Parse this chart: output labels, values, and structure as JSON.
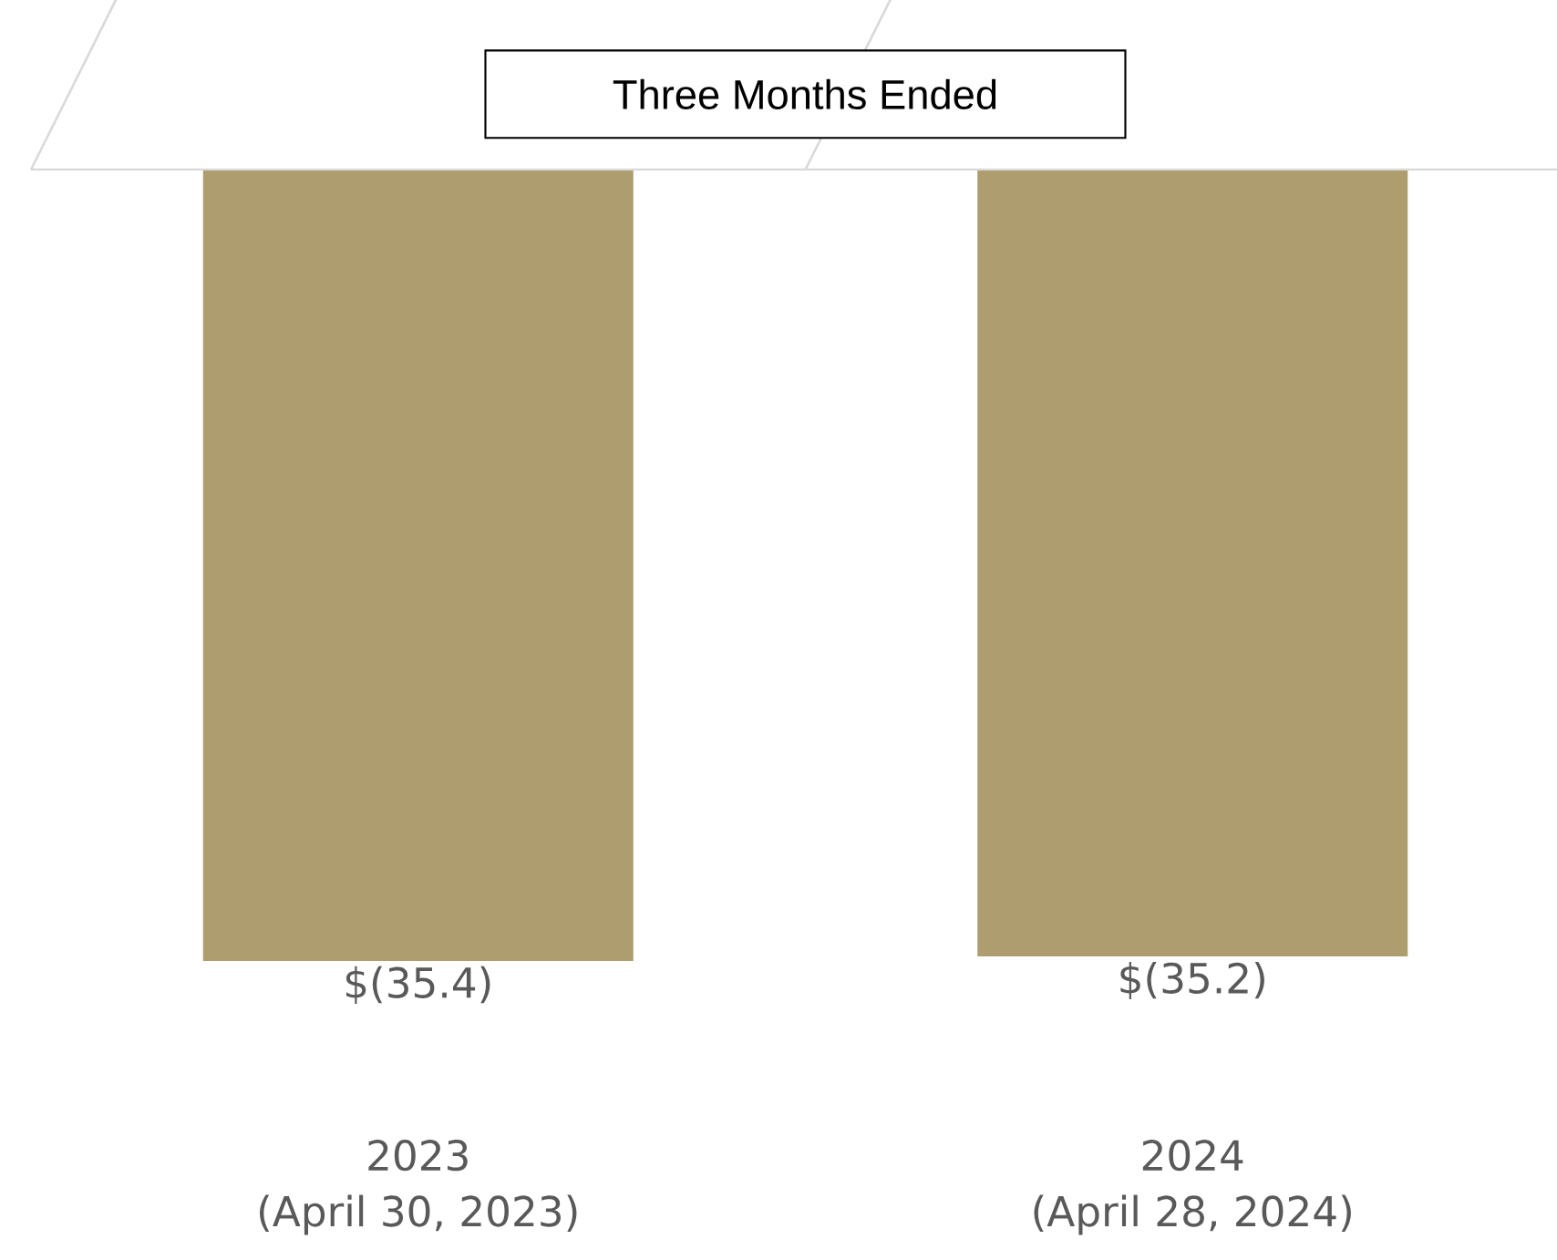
{
  "chart_data": {
    "type": "bar",
    "title": "Three Months Ended",
    "categories": [
      "2023 (April 30, 2023)",
      "2024 (April 28, 2024)"
    ],
    "color": "#ae9d6f",
    "values": [
      -35.4,
      -35.2
    ],
    "value_labels": [
      "$(35.4)",
      "$(35.2)"
    ]
  }
}
